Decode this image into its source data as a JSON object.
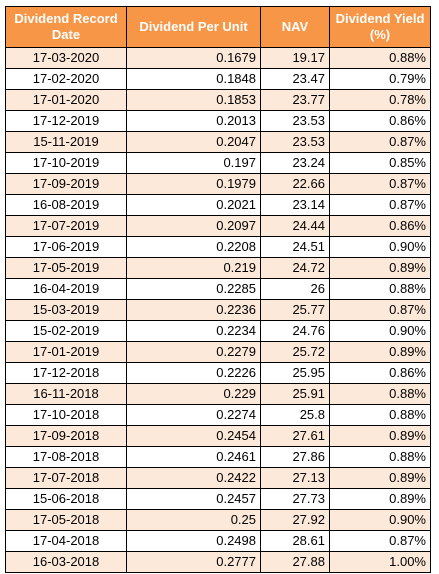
{
  "table": {
    "headers": [
      "Dividend Record Date",
      "Dividend Per Unit",
      "NAV",
      "Dividend Yield (%)"
    ],
    "rows": [
      [
        "17-03-2020",
        "0.1679",
        "19.17",
        "0.88%"
      ],
      [
        "17-02-2020",
        "0.1848",
        "23.47",
        "0.79%"
      ],
      [
        "17-01-2020",
        "0.1853",
        "23.77",
        "0.78%"
      ],
      [
        "17-12-2019",
        "0.2013",
        "23.53",
        "0.86%"
      ],
      [
        "15-11-2019",
        "0.2047",
        "23.53",
        "0.87%"
      ],
      [
        "17-10-2019",
        "0.197",
        "23.24",
        "0.85%"
      ],
      [
        "17-09-2019",
        "0.1979",
        "22.66",
        "0.87%"
      ],
      [
        "16-08-2019",
        "0.2021",
        "23.14",
        "0.87%"
      ],
      [
        "17-07-2019",
        "0.2097",
        "24.44",
        "0.86%"
      ],
      [
        "17-06-2019",
        "0.2208",
        "24.51",
        "0.90%"
      ],
      [
        "17-05-2019",
        "0.219",
        "24.72",
        "0.89%"
      ],
      [
        "16-04-2019",
        "0.2285",
        "26",
        "0.88%"
      ],
      [
        "15-03-2019",
        "0.2236",
        "25.77",
        "0.87%"
      ],
      [
        "15-02-2019",
        "0.2234",
        "24.76",
        "0.90%"
      ],
      [
        "17-01-2019",
        "0.2279",
        "25.72",
        "0.89%"
      ],
      [
        "17-12-2018",
        "0.2226",
        "25.95",
        "0.86%"
      ],
      [
        "16-11-2018",
        "0.229",
        "25.91",
        "0.88%"
      ],
      [
        "17-10-2018",
        "0.2274",
        "25.8",
        "0.88%"
      ],
      [
        "17-09-2018",
        "0.2454",
        "27.61",
        "0.89%"
      ],
      [
        "17-08-2018",
        "0.2461",
        "27.86",
        "0.88%"
      ],
      [
        "17-07-2018",
        "0.2422",
        "27.13",
        "0.89%"
      ],
      [
        "15-06-2018",
        "0.2457",
        "27.73",
        "0.89%"
      ],
      [
        "17-05-2018",
        "0.25",
        "27.92",
        "0.90%"
      ],
      [
        "17-04-2018",
        "0.2498",
        "28.61",
        "0.87%"
      ],
      [
        "16-03-2018",
        "0.2777",
        "27.88",
        "1.00%"
      ]
    ]
  },
  "colors": {
    "header_bg": "#f79646",
    "header_text": "#ffffff",
    "alt_row_bg": "#fde9d9",
    "plain_row_bg": "#ffffff",
    "border": "#000000"
  }
}
